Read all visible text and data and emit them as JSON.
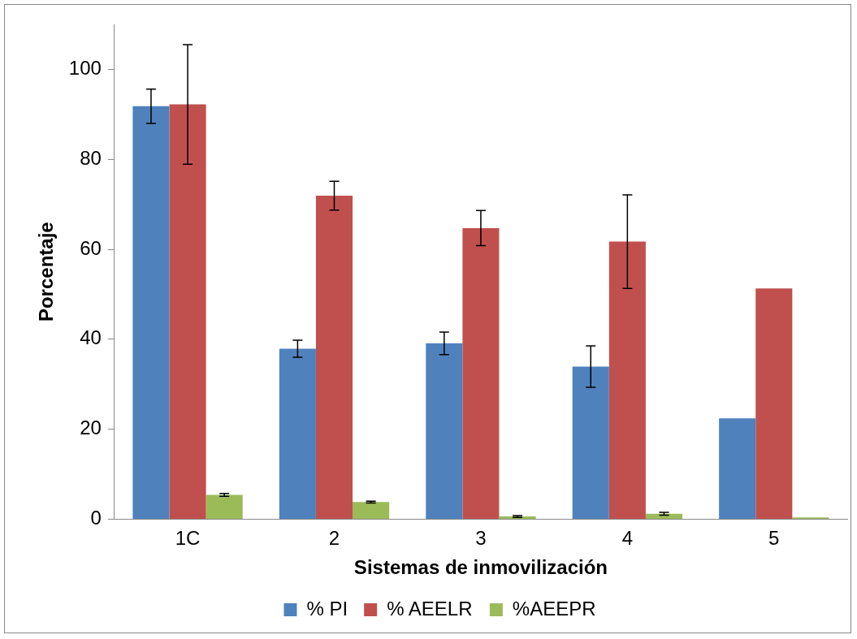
{
  "chart_data": {
    "type": "bar",
    "xlabel": "Sistemas de inmovilización",
    "ylabel": "Porcentaje",
    "categories": [
      "1C",
      "2",
      "3",
      "4",
      "5"
    ],
    "series": [
      {
        "name": "% PI",
        "color": "#4f81bd",
        "values": [
          91.8,
          37.9,
          39.1,
          33.9,
          22.4
        ],
        "errors": [
          3.8,
          1.9,
          2.5,
          4.6,
          null
        ]
      },
      {
        "name": "% AEELR",
        "color": "#c0504d",
        "values": [
          92.2,
          71.9,
          64.7,
          61.7,
          51.3
        ],
        "errors": [
          13.3,
          3.2,
          3.9,
          10.4,
          null
        ]
      },
      {
        "name": "%AEEPR",
        "color": "#9bbb59",
        "values": [
          5.4,
          3.8,
          0.6,
          1.2,
          0.4
        ],
        "errors": [
          0.3,
          0.2,
          0.2,
          0.3,
          null
        ]
      }
    ],
    "ylim": [
      0,
      110
    ],
    "yticks": [
      0,
      20,
      40,
      60,
      80,
      100
    ],
    "grid": false,
    "legend": "bottom"
  }
}
